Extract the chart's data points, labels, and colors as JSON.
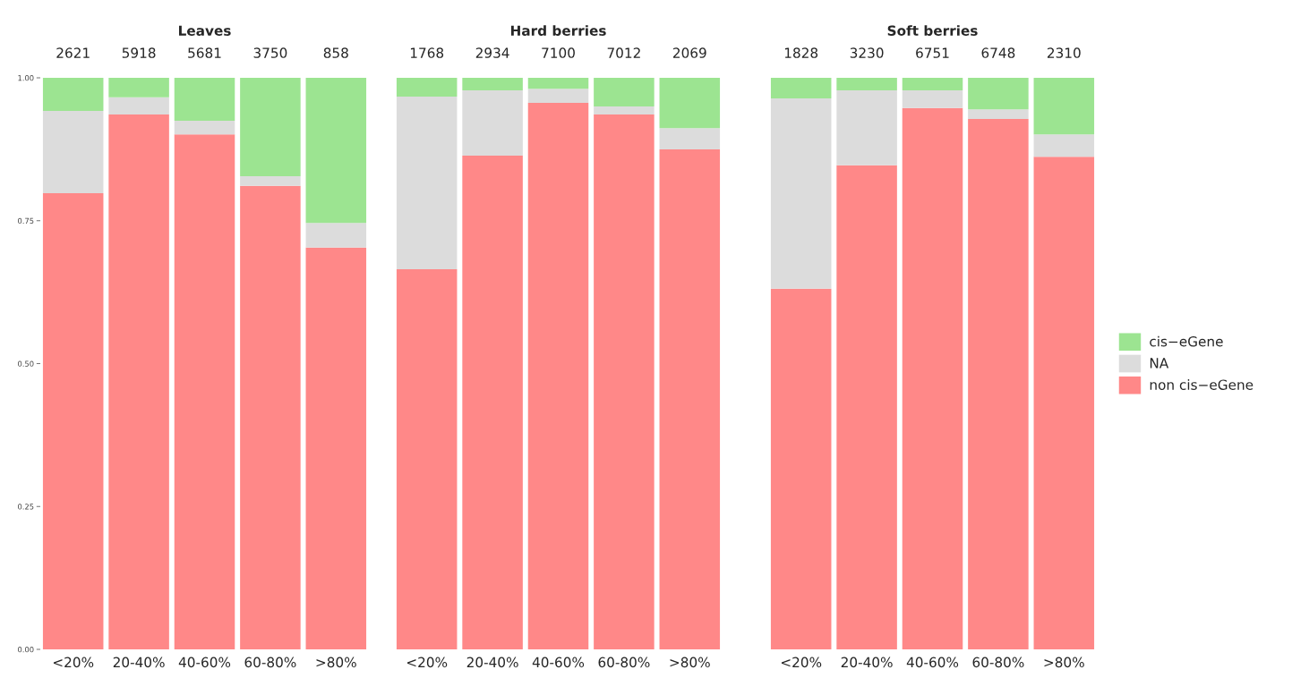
{
  "chart_data": [
    {
      "type": "bar",
      "stacked": true,
      "title": "Leaves",
      "categories": [
        "<20%",
        "20-40%",
        "40-60%",
        "60-80%",
        ">80%"
      ],
      "series": [
        {
          "color": "#ff8888",
          "values": [
            0.798,
            0.936,
            0.901,
            0.811,
            0.703
          ]
        },
        {
          "color": "#dcdcdc",
          "values": [
            0.144,
            0.03,
            0.024,
            0.017,
            0.043
          ]
        },
        {
          "color": "#9ce491",
          "values": [
            0.058,
            0.034,
            0.075,
            0.172,
            0.254
          ]
        }
      ],
      "annotations": [
        "2621",
        "5918",
        "5681",
        "3750",
        "858"
      ],
      "ylim": [
        0,
        1
      ],
      "yticks": [
        {
          "value": 0,
          "label": "0.00"
        },
        {
          "value": 0.25,
          "label": "0.25"
        },
        {
          "value": 0.5,
          "label": "0.50"
        },
        {
          "value": 0.75,
          "label": "0.75"
        },
        {
          "value": 1,
          "label": "1.00"
        }
      ],
      "grid": false
    },
    {
      "type": "bar",
      "stacked": true,
      "title": "Hard berries",
      "categories": [
        "<20%",
        "20-40%",
        "40-60%",
        "60-80%",
        ">80%"
      ],
      "series": [
        {
          "color": "#ff8888",
          "values": [
            0.665,
            0.864,
            0.956,
            0.936,
            0.875
          ]
        },
        {
          "color": "#dcdcdc",
          "values": [
            0.302,
            0.114,
            0.025,
            0.014,
            0.037
          ]
        },
        {
          "color": "#9ce491",
          "values": [
            0.033,
            0.022,
            0.019,
            0.05,
            0.088
          ]
        }
      ],
      "annotations": [
        "1768",
        "2934",
        "7100",
        "7012",
        "2069"
      ],
      "ylim": [
        0,
        1
      ],
      "tick_labels": "x",
      "grid": false
    },
    {
      "type": "bar",
      "stacked": true,
      "title": "Soft berries",
      "categories": [
        "<20%",
        "20-40%",
        "40-60%",
        "60-80%",
        ">80%"
      ],
      "series": [
        {
          "name": "non cis−eGene",
          "color": "#ff8888",
          "values": [
            0.631,
            0.847,
            0.947,
            0.928,
            0.862
          ]
        },
        {
          "name": "NA",
          "color": "#dcdcdc",
          "values": [
            0.333,
            0.131,
            0.031,
            0.017,
            0.039
          ]
        },
        {
          "name": "cis−eGene",
          "color": "#9ce491",
          "values": [
            0.036,
            0.022,
            0.022,
            0.055,
            0.099
          ]
        }
      ],
      "annotations": [
        "1828",
        "3230",
        "6751",
        "6748",
        "2310"
      ],
      "ylim": [
        0,
        1
      ],
      "tick_labels": "x",
      "grid": false,
      "legend": "right"
    }
  ]
}
